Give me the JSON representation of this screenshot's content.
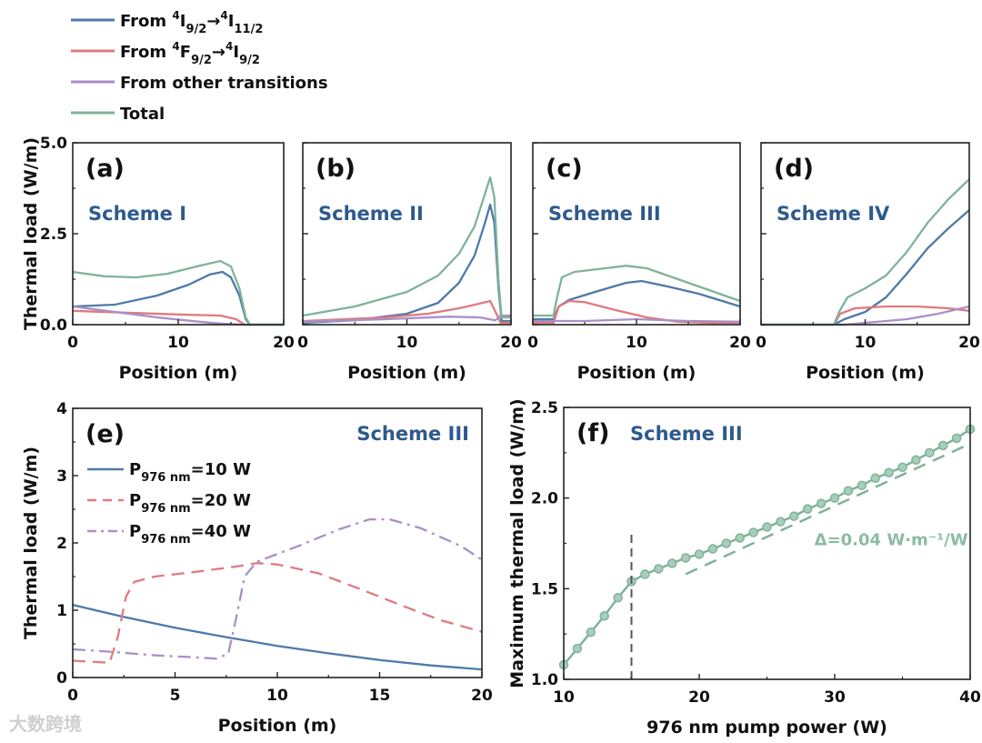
{
  "colors": {
    "blue": "#4e7aa8",
    "red": "#e07a80",
    "purple": "#a98fc8",
    "green": "#7fb39a",
    "scheme_text": "#2e5a8c",
    "dashed_marker": "#555555"
  },
  "legend_top": [
    {
      "key": "blue",
      "parts": [
        {
          "t": "From "
        },
        {
          "t": "4",
          "s": "sup"
        },
        {
          "t": "I"
        },
        {
          "t": "9/2",
          "s": "sub"
        },
        {
          "t": "→"
        },
        {
          "t": "4",
          "s": "sup"
        },
        {
          "t": "I"
        },
        {
          "t": "11/2",
          "s": "sub"
        }
      ]
    },
    {
      "key": "red",
      "parts": [
        {
          "t": "From "
        },
        {
          "t": "4",
          "s": "sup"
        },
        {
          "t": "F"
        },
        {
          "t": "9/2",
          "s": "sub"
        },
        {
          "t": "→"
        },
        {
          "t": "4",
          "s": "sup"
        },
        {
          "t": "I"
        },
        {
          "t": "9/2",
          "s": "sub"
        }
      ]
    },
    {
      "key": "purple",
      "parts": [
        {
          "t": "From other transitions"
        }
      ]
    },
    {
      "key": "green",
      "parts": [
        {
          "t": "Total"
        }
      ]
    }
  ],
  "watermark": "大数跨境",
  "chart_data": [
    {
      "type": "line",
      "panel": "(a)",
      "scheme": "Scheme I",
      "xlabel": "Position (m)",
      "ylabel": "Thermal load (W/m)",
      "xlim": [
        0,
        20
      ],
      "ylim": [
        0,
        5
      ],
      "xticks": [
        "0",
        "10",
        "20"
      ],
      "yticks": [
        "0.0",
        "2.5",
        "5.0"
      ],
      "series": [
        {
          "name": "From 4I9/2→4I11/2",
          "color": "blue",
          "x": [
            0,
            4,
            8,
            11,
            13,
            14.2,
            15,
            15.8,
            16.4,
            16.8,
            20
          ],
          "y": [
            0.5,
            0.55,
            0.8,
            1.1,
            1.38,
            1.45,
            1.3,
            0.8,
            0.15,
            0,
            0
          ]
        },
        {
          "name": "From 4F9/2→4I9/2",
          "color": "red",
          "x": [
            0,
            5,
            10,
            14,
            15.5,
            16.3,
            20
          ],
          "y": [
            0.38,
            0.33,
            0.28,
            0.25,
            0.15,
            0,
            0
          ]
        },
        {
          "name": "From other transitions",
          "color": "purple",
          "x": [
            0,
            4,
            8,
            12,
            14,
            16,
            20
          ],
          "y": [
            0.5,
            0.35,
            0.2,
            0.08,
            0.03,
            0,
            0
          ]
        },
        {
          "name": "Total",
          "color": "green",
          "x": [
            0,
            3,
            6,
            9,
            12,
            14,
            15,
            15.8,
            16.4,
            16.8,
            20
          ],
          "y": [
            1.45,
            1.33,
            1.3,
            1.4,
            1.62,
            1.75,
            1.6,
            1.0,
            0.2,
            0,
            0
          ]
        }
      ]
    },
    {
      "type": "line",
      "panel": "(b)",
      "scheme": "Scheme II",
      "xlabel": "Position (m)",
      "xlim": [
        0,
        20
      ],
      "ylim": [
        0,
        5
      ],
      "xticks": [
        "0",
        "10",
        "20"
      ],
      "series": [
        {
          "name": "From 4I9/2→4I11/2",
          "color": "blue",
          "x": [
            0,
            5,
            10,
            13,
            15,
            16.5,
            17.5,
            18,
            18.4,
            18.8,
            19.1,
            20
          ],
          "y": [
            0.05,
            0.12,
            0.3,
            0.6,
            1.15,
            1.9,
            2.8,
            3.3,
            2.8,
            1.0,
            0.1,
            0.1
          ]
        },
        {
          "name": "From 4F9/2→4I9/2",
          "color": "red",
          "x": [
            0,
            8,
            12,
            15,
            17,
            18,
            18.6,
            19,
            20
          ],
          "y": [
            0.1,
            0.2,
            0.3,
            0.45,
            0.58,
            0.65,
            0.3,
            0.05,
            0.05
          ]
        },
        {
          "name": "From other transitions",
          "color": "purple",
          "x": [
            0,
            8,
            14,
            17,
            18.5,
            19,
            20
          ],
          "y": [
            0.08,
            0.15,
            0.22,
            0.2,
            0.12,
            0.25,
            0.25
          ]
        },
        {
          "name": "Total",
          "color": "green",
          "x": [
            0,
            5,
            10,
            13,
            15,
            16.5,
            17.5,
            18,
            18.4,
            18.8,
            19.1,
            20
          ],
          "y": [
            0.25,
            0.5,
            0.9,
            1.35,
            1.95,
            2.7,
            3.6,
            4.05,
            3.5,
            1.2,
            0.2,
            0.2
          ]
        }
      ]
    },
    {
      "type": "line",
      "panel": "(c)",
      "scheme": "Scheme III",
      "xlabel": "Position (m)",
      "xlim": [
        0,
        20
      ],
      "ylim": [
        0,
        5
      ],
      "xticks": [
        "0",
        "10",
        "20"
      ],
      "series": [
        {
          "name": "From 4I9/2→4I11/2",
          "color": "blue",
          "x": [
            0,
            2,
            2.5,
            3.5,
            6,
            9,
            10.5,
            13,
            16,
            20
          ],
          "y": [
            0.15,
            0.15,
            0.5,
            0.68,
            0.9,
            1.15,
            1.2,
            1.05,
            0.85,
            0.5
          ]
        },
        {
          "name": "From 4F9/2→4I9/2",
          "color": "red",
          "x": [
            0,
            2,
            2.5,
            3.5,
            5,
            8,
            11,
            14,
            17,
            20
          ],
          "y": [
            0.05,
            0.05,
            0.5,
            0.65,
            0.62,
            0.4,
            0.2,
            0.08,
            0.05,
            0.05
          ]
        },
        {
          "name": "From other transitions",
          "color": "purple",
          "x": [
            0,
            5,
            10,
            15,
            20
          ],
          "y": [
            0.1,
            0.1,
            0.15,
            0.1,
            0.08
          ]
        },
        {
          "name": "Total",
          "color": "green",
          "x": [
            0,
            2,
            2.3,
            2.8,
            4,
            7,
            9,
            11,
            14,
            17,
            20
          ],
          "y": [
            0.25,
            0.25,
            0.7,
            1.3,
            1.45,
            1.55,
            1.62,
            1.55,
            1.25,
            0.95,
            0.65
          ]
        }
      ]
    },
    {
      "type": "line",
      "panel": "(d)",
      "scheme": "Scheme IV",
      "xlabel": "Position (m)",
      "xlim": [
        0,
        20
      ],
      "ylim": [
        0,
        5
      ],
      "xticks": [
        "0",
        "10",
        "20"
      ],
      "series": [
        {
          "name": "From 4I9/2→4I11/2",
          "color": "blue",
          "x": [
            0,
            7,
            8,
            10,
            12,
            14,
            16,
            18,
            20
          ],
          "y": [
            0,
            0,
            0.15,
            0.35,
            0.75,
            1.4,
            2.1,
            2.65,
            3.15
          ]
        },
        {
          "name": "From 4F9/2→4I9/2",
          "color": "red",
          "x": [
            0,
            7,
            7.6,
            9,
            12,
            15,
            18,
            20
          ],
          "y": [
            0,
            0,
            0.3,
            0.45,
            0.5,
            0.5,
            0.45,
            0.38
          ]
        },
        {
          "name": "From other transitions",
          "color": "purple",
          "x": [
            0,
            8,
            10,
            14,
            17,
            20
          ],
          "y": [
            0,
            0,
            0.05,
            0.15,
            0.3,
            0.5
          ]
        },
        {
          "name": "Total",
          "color": "green",
          "x": [
            0,
            7,
            7.5,
            8.3,
            10,
            12,
            14,
            16,
            18,
            20
          ],
          "y": [
            0,
            0,
            0.35,
            0.75,
            1.0,
            1.35,
            2.0,
            2.8,
            3.45,
            4.0
          ]
        }
      ]
    },
    {
      "type": "line",
      "panel": "(e)",
      "scheme": "Scheme III",
      "xlabel": "Position (m)",
      "ylabel": "Thermal load (W/m)",
      "xlim": [
        0,
        20
      ],
      "ylim": [
        0,
        4
      ],
      "xticks": [
        "0",
        "5",
        "10",
        "15",
        "20"
      ],
      "yticks": [
        "0",
        "1",
        "2",
        "3",
        "4"
      ],
      "series": [
        {
          "name": "P976 nm=10 W",
          "label_parts": [
            {
              "t": "P"
            },
            {
              "t": "976 nm",
              "s": "sub"
            },
            {
              "t": "=10 W"
            }
          ],
          "color": "blue",
          "dash": "solid",
          "x": [
            0,
            2.5,
            5,
            7.5,
            10,
            12.5,
            15,
            17.5,
            20
          ],
          "y": [
            1.08,
            0.9,
            0.74,
            0.6,
            0.47,
            0.36,
            0.26,
            0.18,
            0.12
          ]
        },
        {
          "name": "P976 nm=20 W",
          "label_parts": [
            {
              "t": "P"
            },
            {
              "t": "976 nm",
              "s": "sub"
            },
            {
              "t": "=20 W"
            }
          ],
          "color": "red",
          "dash": "dash",
          "x": [
            0,
            1.8,
            2.2,
            2.6,
            3,
            4,
            6,
            8,
            9,
            10,
            12,
            14,
            16,
            18,
            20
          ],
          "y": [
            0.25,
            0.22,
            0.6,
            1.2,
            1.42,
            1.5,
            1.57,
            1.65,
            1.7,
            1.68,
            1.55,
            1.32,
            1.08,
            0.85,
            0.68
          ]
        },
        {
          "name": "P976 nm=40 W",
          "label_parts": [
            {
              "t": "P"
            },
            {
              "t": "976 nm",
              "s": "sub"
            },
            {
              "t": "=40 W"
            }
          ],
          "color": "purple",
          "dash": "dashdot",
          "x": [
            0,
            2,
            4,
            6,
            7,
            7.6,
            8,
            8.4,
            9,
            11,
            13,
            14.5,
            15.5,
            17,
            19,
            20
          ],
          "y": [
            0.42,
            0.38,
            0.33,
            0.3,
            0.28,
            0.35,
            0.9,
            1.5,
            1.72,
            1.95,
            2.2,
            2.35,
            2.35,
            2.22,
            1.95,
            1.75
          ]
        }
      ]
    },
    {
      "type": "scatter",
      "panel": "(f)",
      "scheme": "Scheme III",
      "xlabel": "976 nm pump power (W)",
      "ylabel": "Maximum thermal load (W/m)",
      "xlim": [
        10,
        40
      ],
      "ylim": [
        1.0,
        2.5
      ],
      "xticks": [
        "10",
        "20",
        "30",
        "40"
      ],
      "yticks": [
        "1.0",
        "1.5",
        "2.0",
        "2.5"
      ],
      "series": [
        {
          "name": "Maximum thermal load",
          "color": "green",
          "x": [
            10,
            11,
            12,
            13,
            14,
            15,
            16,
            17,
            18,
            19,
            20,
            21,
            22,
            23,
            24,
            25,
            26,
            27,
            28,
            29,
            30,
            31,
            32,
            33,
            34,
            35,
            36,
            37,
            38,
            39,
            40
          ],
          "y": [
            1.08,
            1.17,
            1.26,
            1.35,
            1.45,
            1.54,
            1.58,
            1.61,
            1.64,
            1.67,
            1.69,
            1.72,
            1.75,
            1.78,
            1.81,
            1.84,
            1.87,
            1.9,
            1.94,
            1.97,
            2.0,
            2.04,
            2.07,
            2.11,
            2.14,
            2.17,
            2.21,
            2.25,
            2.29,
            2.33,
            2.38
          ]
        }
      ],
      "fit_line": {
        "x": [
          19,
          40
        ],
        "y": [
          1.58,
          2.3
        ]
      },
      "threshold_x": 15,
      "threshold_y": [
        1.0,
        1.8
      ],
      "annotation": {
        "text": "Δ=0.04 W·m⁻¹/W",
        "x": 28.5,
        "y": 1.74
      }
    }
  ]
}
